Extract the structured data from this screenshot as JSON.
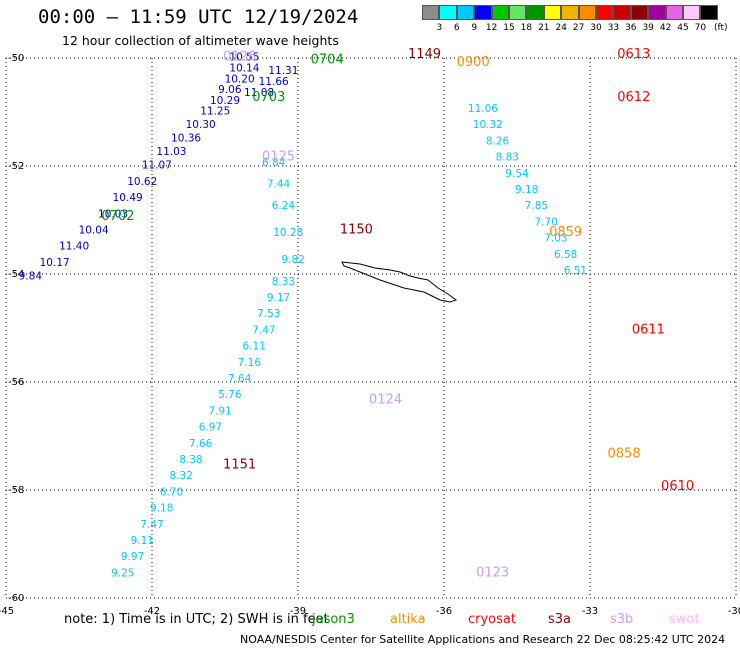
{
  "header": {
    "title": "00:00 – 11:59 UTC 12/19/2024",
    "subtitle": "12 hour collection of altimeter wave heights"
  },
  "color_scale": {
    "labels": [
      "3",
      "6",
      "9",
      "12",
      "15",
      "18",
      "21",
      "24",
      "27",
      "30",
      "33",
      "36",
      "39",
      "42",
      "45",
      "70"
    ],
    "unit": "(ft)",
    "colors": [
      "#8c8c8c",
      "#00ffff",
      "#00c8ff",
      "#0000ff",
      "#00c800",
      "#64e664",
      "#009600",
      "#ffff00",
      "#f0b400",
      "#ff8c00",
      "#ff0000",
      "#c80000",
      "#8c0000",
      "#a000a0",
      "#e664e6",
      "#ffc8ff",
      "#000000"
    ]
  },
  "footer": {
    "note": "note: 1) Time is in UTC; 2) SWH is in feet",
    "missions": [
      {
        "name": "jason3",
        "color": "#009600"
      },
      {
        "name": "altika",
        "color": "#ff8c00"
      },
      {
        "name": "cryosat",
        "color": "#ff0000"
      },
      {
        "name": "s3a",
        "color": "#8c0000"
      },
      {
        "name": "s3b",
        "color": "#c8a0f0"
      },
      {
        "name": "swot",
        "color": "#ffb4ff"
      }
    ],
    "credit": "NOAA/NESDIS Center for Satellite Applications and Research   22 Dec 08:25:42 UTC 2024"
  },
  "chart_data": {
    "type": "scatter",
    "title": "00:00 – 11:59 UTC 12/19/2024",
    "xlabel": "",
    "ylabel": "",
    "xlim": [
      -45,
      -30
    ],
    "ylim": [
      -60,
      -50
    ],
    "x_ticks": [
      "-45",
      "-42",
      "-39",
      "-36",
      "-33",
      "-30"
    ],
    "y_ticks": [
      "-50",
      "-52",
      "-54",
      "-56",
      "-58",
      "-60"
    ],
    "grid": true,
    "time_labels": [
      {
        "text": "0704",
        "x": -38.4,
        "y": -50.1,
        "color": "#009600"
      },
      {
        "text": "0703",
        "x": -39.6,
        "y": -50.8,
        "color": "#009600"
      },
      {
        "text": "0702",
        "x": -42.7,
        "y": -53.0,
        "color": "#009600"
      },
      {
        "text": "0126",
        "x": -40.2,
        "y": -50.05,
        "color": "#c8a0f0"
      },
      {
        "text": "0125",
        "x": -39.4,
        "y": -51.9,
        "color": "#c8a0f0"
      },
      {
        "text": "0124",
        "x": -37.2,
        "y": -56.4,
        "color": "#c8a0f0"
      },
      {
        "text": "0123",
        "x": -35.0,
        "y": -59.6,
        "color": "#c8a0f0"
      },
      {
        "text": "1149",
        "x": -36.4,
        "y": -50.0,
        "color": "#8c0000"
      },
      {
        "text": "1150",
        "x": -37.8,
        "y": -53.25,
        "color": "#8c0000"
      },
      {
        "text": "1151",
        "x": -40.2,
        "y": -57.6,
        "color": "#8c0000"
      },
      {
        "text": "0900",
        "x": -35.4,
        "y": -50.15,
        "color": "#ff8c00"
      },
      {
        "text": "0859",
        "x": -33.5,
        "y": -53.3,
        "color": "#ff8c00"
      },
      {
        "text": "0858",
        "x": -32.3,
        "y": -57.4,
        "color": "#ff8c00"
      },
      {
        "text": "0613",
        "x": -32.1,
        "y": -50.0,
        "color": "#ff0000"
      },
      {
        "text": "0612",
        "x": -32.1,
        "y": -50.8,
        "color": "#ff0000"
      },
      {
        "text": "0611",
        "x": -31.8,
        "y": -55.1,
        "color": "#ff0000"
      },
      {
        "text": "0610",
        "x": -31.2,
        "y": -58.0,
        "color": "#ff0000"
      }
    ],
    "series": [
      {
        "name": "jason3",
        "color": "#0000cc",
        "points": [
          {
            "x": -40.1,
            "y": -50.05,
            "v": 10.55
          },
          {
            "x": -40.1,
            "y": -50.25,
            "v": 10.14
          },
          {
            "x": -40.2,
            "y": -50.45,
            "v": 10.2
          },
          {
            "x": -40.4,
            "y": -50.65,
            "v": 9.06
          },
          {
            "x": -40.5,
            "y": -50.85,
            "v": 10.29
          },
          {
            "x": -40.7,
            "y": -51.05,
            "v": 11.25
          },
          {
            "x": -41.0,
            "y": -51.3,
            "v": 10.3
          },
          {
            "x": -41.3,
            "y": -51.55,
            "v": 10.36
          },
          {
            "x": -41.6,
            "y": -51.8,
            "v": 11.03
          },
          {
            "x": -41.9,
            "y": -52.05,
            "v": 11.07
          },
          {
            "x": -42.2,
            "y": -52.35,
            "v": 10.62
          },
          {
            "x": -42.5,
            "y": -52.65,
            "v": 10.49
          },
          {
            "x": -42.8,
            "y": -52.95,
            "v": 10.03
          },
          {
            "x": -43.2,
            "y": -53.25,
            "v": 10.04
          },
          {
            "x": -43.6,
            "y": -53.55,
            "v": 11.4
          },
          {
            "x": -44.0,
            "y": -53.85,
            "v": 10.17
          },
          {
            "x": -44.5,
            "y": -54.1,
            "v": 9.84
          },
          {
            "x": -39.3,
            "y": -50.3,
            "v": 11.31
          },
          {
            "x": -39.5,
            "y": -50.5,
            "v": 11.66
          },
          {
            "x": -39.8,
            "y": -50.7,
            "v": 11.08
          }
        ]
      },
      {
        "name": "s3a",
        "color": "#00c8ff",
        "points": [
          {
            "x": -39.5,
            "y": -52.0,
            "v": 6.84
          },
          {
            "x": -39.4,
            "y": -52.4,
            "v": 7.44
          },
          {
            "x": -39.3,
            "y": -52.8,
            "v": 6.24
          },
          {
            "x": -39.2,
            "y": -53.3,
            "v": 10.28
          },
          {
            "x": -39.1,
            "y": -53.8,
            "v": 9.82
          },
          {
            "x": -39.3,
            "y": -54.2,
            "v": 8.33
          },
          {
            "x": -39.4,
            "y": -54.5,
            "v": 9.17
          },
          {
            "x": -39.6,
            "y": -54.8,
            "v": 7.53
          },
          {
            "x": -39.7,
            "y": -55.1,
            "v": 7.47
          },
          {
            "x": -39.9,
            "y": -55.4,
            "v": 6.11
          },
          {
            "x": -40.0,
            "y": -55.7,
            "v": 7.16
          },
          {
            "x": -40.2,
            "y": -56.0,
            "v": 7.64
          },
          {
            "x": -40.4,
            "y": -56.3,
            "v": 5.76
          },
          {
            "x": -40.6,
            "y": -56.6,
            "v": 7.91
          },
          {
            "x": -40.8,
            "y": -56.9,
            "v": 6.97
          },
          {
            "x": -41.0,
            "y": -57.2,
            "v": 7.66
          },
          {
            "x": -41.2,
            "y": -57.5,
            "v": 8.38
          },
          {
            "x": -41.4,
            "y": -57.8,
            "v": 8.32
          },
          {
            "x": -41.6,
            "y": -58.1,
            "v": 6.7
          },
          {
            "x": -41.8,
            "y": -58.4,
            "v": 9.18
          },
          {
            "x": -42.0,
            "y": -58.7,
            "v": 7.47
          },
          {
            "x": -42.2,
            "y": -59.0,
            "v": 9.11
          },
          {
            "x": -42.4,
            "y": -59.3,
            "v": 9.97
          },
          {
            "x": -42.6,
            "y": -59.6,
            "v": 9.25
          }
        ]
      },
      {
        "name": "altika",
        "color": "#00c8ff",
        "points": [
          {
            "x": -35.2,
            "y": -51.0,
            "v": 11.06
          },
          {
            "x": -35.1,
            "y": -51.3,
            "v": 10.32
          },
          {
            "x": -34.9,
            "y": -51.6,
            "v": 8.26
          },
          {
            "x": -34.7,
            "y": -51.9,
            "v": 8.83
          },
          {
            "x": -34.5,
            "y": -52.2,
            "v": 9.54
          },
          {
            "x": -34.3,
            "y": -52.5,
            "v": 9.18
          },
          {
            "x": -34.1,
            "y": -52.8,
            "v": 7.85
          },
          {
            "x": -33.9,
            "y": -53.1,
            "v": 7.7
          },
          {
            "x": -33.7,
            "y": -53.4,
            "v": 7.03
          },
          {
            "x": -33.5,
            "y": -53.7,
            "v": 6.58
          },
          {
            "x": -33.3,
            "y": -54.0,
            "v": 6.51
          }
        ]
      }
    ]
  }
}
